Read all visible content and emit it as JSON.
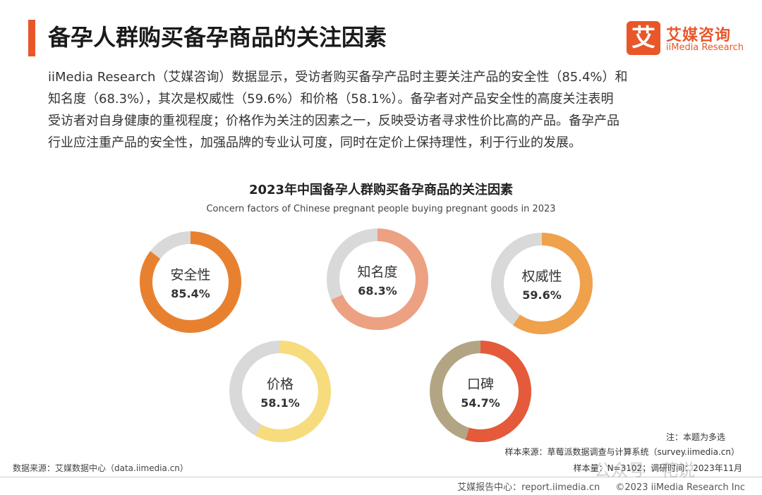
{
  "header": {
    "title": "备孕人群购买备孕商品的关注因素",
    "logo_mark": "艾",
    "logo_cn": "艾媒咨询",
    "logo_en": "iiMedia Research"
  },
  "intro_lines": [
    "iiMedia Research（艾媒咨询）数据显示，受访者购买备孕产品时主要关注产品的安全性（85.4%）和",
    "知名度（68.3%），其次是权威性（59.6%）和价格（58.1%）。备孕者对产品安全性的高度关注表明",
    "受访者对自身健康的重视程度；价格作为关注的因素之一，反映受访者寻求性价比高的产品。备孕产品",
    "行业应注重产品的安全性，加强品牌的专业认可度，同时在定价上保持理性，利于行业的发展。"
  ],
  "chart_data": {
    "type": "donut",
    "title": "2023年中国备孕人群购买备孕商品的关注因素",
    "subtitle": "Concern factors of Chinese pregnant people buying pregnant goods in 2023",
    "unit": "%",
    "items": [
      {
        "label": "安全性",
        "value": 85.4,
        "value_label": "85.4%",
        "color": "#e8812f"
      },
      {
        "label": "知名度",
        "value": 68.3,
        "value_label": "68.3%",
        "color": "#eca182"
      },
      {
        "label": "权威性",
        "value": 59.6,
        "value_label": "59.6%",
        "color": "#f0a14c"
      },
      {
        "label": "价格",
        "value": 58.1,
        "value_label": "58.1%",
        "color": "#f7dc7e"
      },
      {
        "label": "口碑",
        "value": 54.7,
        "value_label": "54.7%",
        "color": "#e45a3a"
      }
    ],
    "remainder_colors": [
      "#d9d9d9",
      "#d9d9d9",
      "#d9d9d9",
      "#d9d9d9",
      "#b3a584"
    ]
  },
  "notes": {
    "note": "注：本题为多选",
    "sample_source": "样本来源：草莓派数据调查与计算系统（survey.iimedia.cn）",
    "sample_size": "样本量：N=3102；调研时间：2023年11月",
    "data_source": "数据来源：艾媒数据中心（data.iimedia.cn）"
  },
  "footer": {
    "report_center": "艾媒报告中心：report.iimedia.cn",
    "copyright": "©2023  iiMedia Research  Inc"
  },
  "watermark": "公众号 · 花说"
}
